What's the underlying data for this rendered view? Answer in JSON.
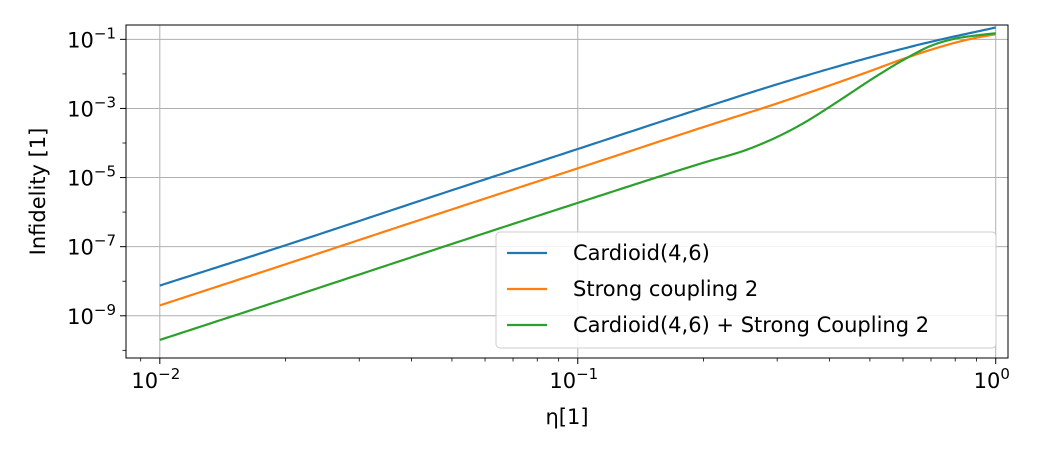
{
  "chart_data": {
    "type": "line",
    "title": "",
    "xlabel": "η[1]",
    "ylabel": "Infidelity [1]",
    "xscale": "log",
    "yscale": "log",
    "xlim": [
      0.0083,
      1.07
    ],
    "ylim": [
      6e-11,
      0.26
    ],
    "grid": true,
    "legend_position": "lower right",
    "x_ticks": [
      {
        "value": 0.01,
        "base": "10",
        "exp": "−2"
      },
      {
        "value": 0.1,
        "base": "10",
        "exp": "−1"
      },
      {
        "value": 1,
        "base": "10",
        "exp": "0"
      }
    ],
    "y_ticks": [
      {
        "value": 1e-09,
        "base": "10",
        "exp": "−9"
      },
      {
        "value": 1e-07,
        "base": "10",
        "exp": "−7"
      },
      {
        "value": 1e-05,
        "base": "10",
        "exp": "−5"
      },
      {
        "value": 0.001,
        "base": "10",
        "exp": "−3"
      },
      {
        "value": 0.1,
        "base": "10",
        "exp": "−1"
      }
    ],
    "series": [
      {
        "name": "Cardioid(4,6)",
        "color": "#1f77b4",
        "x": [
          0.01,
          0.02,
          0.05,
          0.1,
          0.2,
          0.3,
          0.5,
          0.7,
          1.0
        ],
        "y": [
          7.5e-09,
          1.1e-07,
          4.3e-06,
          6.7e-05,
          0.00105,
          0.005,
          0.03,
          0.085,
          0.22
        ]
      },
      {
        "name": "Strong coupling 2",
        "color": "#ff7f0e",
        "x": [
          0.01,
          0.02,
          0.05,
          0.1,
          0.2,
          0.3,
          0.4,
          0.5,
          0.6,
          0.7,
          0.8,
          0.9,
          1.0
        ],
        "y": [
          2e-09,
          3.1e-08,
          1.2e-06,
          1.85e-05,
          0.00029,
          0.0014,
          0.0046,
          0.012,
          0.027,
          0.05,
          0.08,
          0.112,
          0.14
        ]
      },
      {
        "name": "Cardioid(4,6) + Strong Coupling 2",
        "color": "#2ca02c",
        "x": [
          0.01,
          0.02,
          0.05,
          0.1,
          0.2,
          0.25,
          0.3,
          0.35,
          0.4,
          0.45,
          0.5,
          0.6,
          0.7,
          0.8,
          0.9,
          1.0
        ],
        "y": [
          2e-10,
          3.1e-09,
          1.2e-07,
          1.85e-06,
          2.7e-05,
          6e-05,
          0.00015,
          0.0004,
          0.0011,
          0.0028,
          0.0065,
          0.025,
          0.065,
          0.105,
          0.13,
          0.15
        ]
      }
    ]
  }
}
